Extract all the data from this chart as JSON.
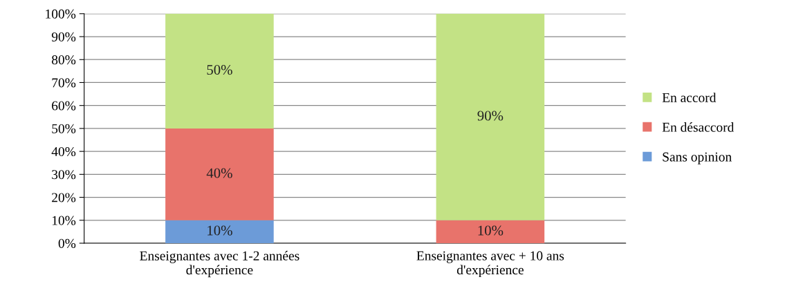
{
  "chart_data": {
    "type": "bar",
    "stacked": true,
    "categories": [
      "Enseignantes avec 1-2 années\nd'expérience",
      "Enseignantes avec + 10 ans\nd'expérience"
    ],
    "series": [
      {
        "name": "Sans opinion",
        "color": "#6c9bd8",
        "values": [
          10,
          0
        ],
        "value_labels": [
          "10%",
          null
        ]
      },
      {
        "name": "En désaccord",
        "color": "#e8736b",
        "values": [
          40,
          10
        ],
        "value_labels": [
          "40%",
          "10%"
        ]
      },
      {
        "name": "En accord",
        "color": "#c3e285",
        "values": [
          50,
          90
        ],
        "value_labels": [
          "50%",
          "90%"
        ]
      }
    ],
    "ylim": [
      0,
      100
    ],
    "yticks": [
      {
        "value": 0,
        "label": "0%"
      },
      {
        "value": 10,
        "label": "10%"
      },
      {
        "value": 20,
        "label": "20%"
      },
      {
        "value": 30,
        "label": "30%"
      },
      {
        "value": 40,
        "label": "40%"
      },
      {
        "value": 50,
        "label": "50%"
      },
      {
        "value": 60,
        "label": "60%"
      },
      {
        "value": 70,
        "label": "70%"
      },
      {
        "value": 80,
        "label": "80%"
      },
      {
        "value": 90,
        "label": "90%"
      },
      {
        "value": 100,
        "label": "100%"
      }
    ],
    "grid": "y",
    "legend": "right"
  }
}
